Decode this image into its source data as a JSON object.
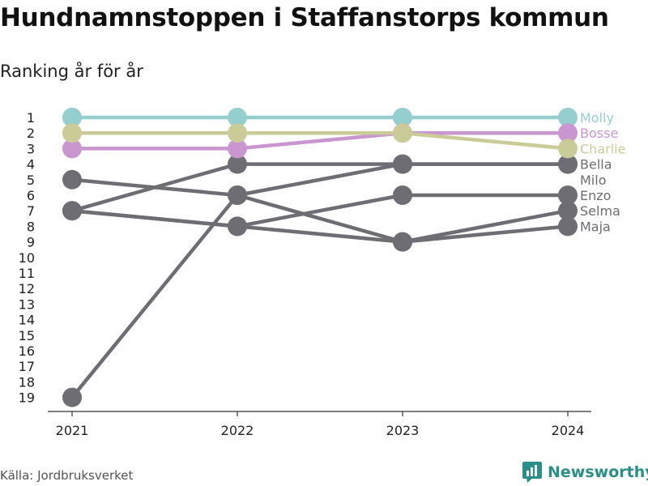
{
  "title": "Hundnamnstoppen i Staffanstorps kommun",
  "subtitle": "Ranking år för år",
  "source": "Källa: Jordbruksverket",
  "brand": "Newsworthy",
  "colors": {
    "Molly": "#95cece",
    "Bosse": "#c996cf",
    "Charlie": "#cbcb97",
    "other": "#6e6d74",
    "brand": "#2a8f88"
  },
  "chart_data": {
    "type": "line",
    "x": [
      "2021",
      "2022",
      "2023",
      "2024"
    ],
    "y_ticks": [
      "1",
      "2",
      "3",
      "4",
      "5",
      "6",
      "7",
      "8",
      "9",
      "10",
      "11",
      "12",
      "13",
      "14",
      "15",
      "16",
      "17",
      "18",
      "19"
    ],
    "ylim": [
      1,
      19
    ],
    "y_inverted": true,
    "series": [
      {
        "name": "Molly",
        "values": [
          1,
          1,
          1,
          1
        ],
        "color": "Molly"
      },
      {
        "name": "Bosse",
        "values": [
          3,
          3,
          2,
          2
        ],
        "color": "Bosse"
      },
      {
        "name": "Charlie",
        "values": [
          2,
          2,
          2,
          3
        ],
        "color": "Charlie"
      },
      {
        "name": "Bella",
        "values": [
          7,
          4,
          4,
          4
        ],
        "color": "other"
      },
      {
        "name": "Milo",
        "values": [
          19,
          6,
          4,
          4
        ],
        "color": "other"
      },
      {
        "name": "Enzo",
        "values": [
          7,
          8,
          6,
          6
        ],
        "color": "other"
      },
      {
        "name": "Selma",
        "values": [
          5,
          6,
          9,
          7
        ],
        "color": "other"
      },
      {
        "name": "Maja",
        "values": [
          7,
          8,
          9,
          8
        ],
        "color": "other"
      }
    ],
    "end_labels": [
      {
        "text": "Molly",
        "color": "Molly"
      },
      {
        "text": "Bosse",
        "color": "Bosse"
      },
      {
        "text": "Charlie",
        "color": "Charlie"
      },
      {
        "text": "Bella",
        "color": "other"
      },
      {
        "text": "Milo",
        "color": "other"
      },
      {
        "text": "Enzo",
        "color": "other"
      },
      {
        "text": "Selma",
        "color": "other"
      },
      {
        "text": "Maja",
        "color": "other"
      }
    ]
  }
}
